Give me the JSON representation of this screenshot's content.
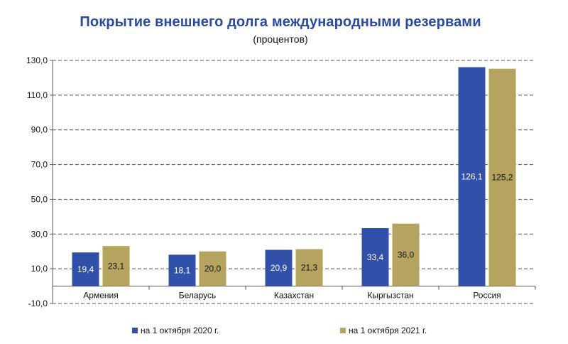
{
  "chart_data": {
    "type": "bar",
    "title": "Покрытие внешнего долга международными резервами",
    "subtitle": "(процентов)",
    "categories": [
      "Армения",
      "Беларусь",
      "Казахстан",
      "Кыргызстан",
      "Россия"
    ],
    "series": [
      {
        "name": "на 1 октября 2020 г.",
        "color": "#3050aa",
        "values": [
          19.4,
          18.1,
          20.9,
          33.4,
          126.1
        ],
        "labels": [
          "19,4",
          "18,1",
          "20,9",
          "33,4",
          "126,1"
        ]
      },
      {
        "name": "на 1 октября 2021 г.",
        "color": "#b5a360",
        "values": [
          23.1,
          20.0,
          21.3,
          36.0,
          125.2
        ],
        "labels": [
          "23,1",
          "20,0",
          "21,3",
          "36,0",
          "125,2"
        ]
      }
    ],
    "ylim": [
      -10,
      130
    ],
    "yticks": [
      -10,
      10,
      30,
      50,
      70,
      90,
      110,
      130
    ],
    "ytick_labels": [
      "-10,0",
      "10,0",
      "30,0",
      "50,0",
      "70,0",
      "90,0",
      "110,0",
      "130,0"
    ],
    "grid": "dashed-horizontal",
    "legend_position": "bottom"
  }
}
